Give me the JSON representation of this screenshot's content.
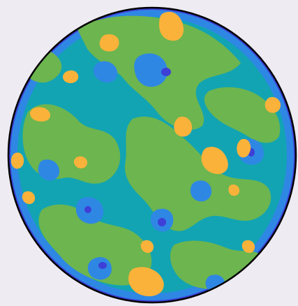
{
  "figure": {
    "background_color": "#eeebf2",
    "outline_color": "#000000",
    "palette": {
      "deep": "#3d3fd6",
      "blue": "#2f87e4",
      "teal": "#12a4b3",
      "green": "#6cb54f",
      "yellow": "#fbb23a"
    },
    "region_types": [
      "deep",
      "blue",
      "teal",
      "green",
      "yellow"
    ]
  }
}
